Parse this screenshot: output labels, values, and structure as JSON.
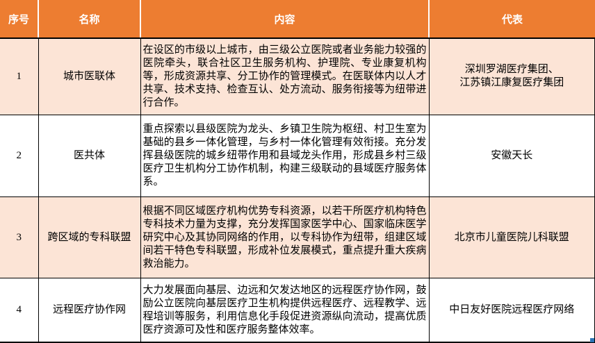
{
  "colors": {
    "header_bg": "#ED7D31",
    "header_text": "#FFFFFF",
    "row_alt_bg": "#FCE4D6",
    "row_bg": "#FFFFFF",
    "border_color": "#000000",
    "handle_color": "#2E75B6"
  },
  "table": {
    "columns": [
      {
        "label": "序号"
      },
      {
        "label": "名称"
      },
      {
        "label": "内容"
      },
      {
        "label": "代表"
      }
    ],
    "rows": [
      {
        "index": "1",
        "name": "城市医联体",
        "content": "在设区的市级以上城市，由三级公立医院或者业务能力较强的医院牵头，联合社区卫生服务机构、护理院、专业康复机构等，形成资源共享、分工协作的管理模式。在医联体内以人才共享、技术支持、检查互认、处方流动、服务衔接等为纽带进行合作。",
        "representative": "深圳罗湖医疗集团、\n江苏镇江康复医疗集团"
      },
      {
        "index": "2",
        "name": "医共体",
        "content": "重点探索以县级医院为龙头、乡镇卫生院为枢纽、村卫生室为基础的县乡一体化管理，与乡村一体化管理有效衔接。充分发挥县级医院的城乡纽带作用和县域龙头作用，形成县乡村三级医疗卫生机构分工协作机制，构建三级联动的县域医疗服务体系。",
        "representative": "安徽天长"
      },
      {
        "index": "3",
        "name": "跨区域的专科联盟",
        "content": "根据不同区域医疗机构优势专科资源，以若干所医疗机构特色专科技术力量为支撑，充分发挥国家医学中心、国家临床医学研究中心及其协同网络的作用，以专科协作为纽带，组建区域间若干特色专科联盟，形成补位发展模式，重点提升重大疾病救治能力。",
        "representative": "北京市儿童医院儿科联盟"
      },
      {
        "index": "4",
        "name": "远程医疗协作网",
        "content": "大力发展面向基层、边远和欠发达地区的远程医疗协作网，鼓励公立医院向基层医疗卫生机构提供远程医疗、远程教学、远程培训等服务，利用信息化手段促进资源纵向流动，提高优质医疗资源可及性和医疗服务整体效率。",
        "representative": "中日友好医院远程医疗网络"
      }
    ]
  }
}
